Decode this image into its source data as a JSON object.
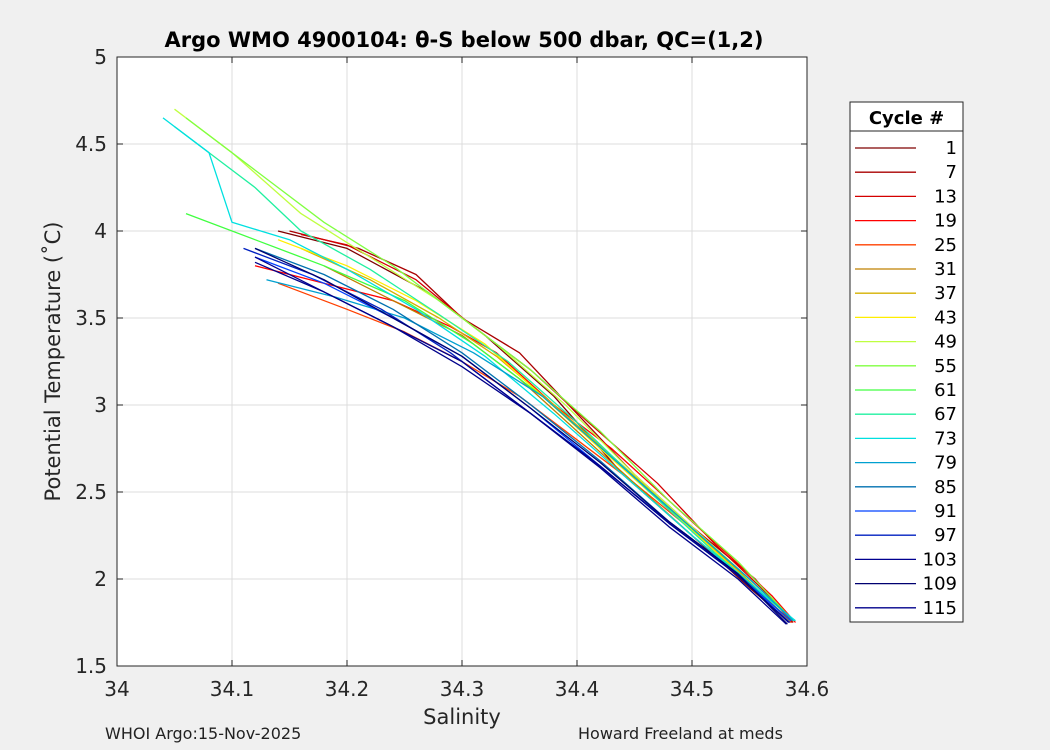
{
  "chart_data": {
    "type": "line",
    "title": "Argo WMO 4900104: θ-S below 500 dbar,  QC=(1,2)",
    "xlabel": "Salinity",
    "ylabel": "Potential Temperature (˚C)",
    "xlim": [
      34,
      34.6
    ],
    "ylim": [
      1.5,
      5
    ],
    "xticks": [
      34,
      34.1,
      34.2,
      34.3,
      34.4,
      34.5,
      34.6
    ],
    "xtick_labels": [
      "34",
      "34.1",
      "34.2",
      "34.3",
      "34.4",
      "34.5",
      "34.6"
    ],
    "yticks": [
      1.5,
      2,
      2.5,
      3,
      3.5,
      4,
      4.5,
      5
    ],
    "ytick_labels": [
      "1.5",
      "2",
      "2.5",
      "3",
      "3.5",
      "4",
      "4.5",
      "5"
    ],
    "grid": true,
    "legend": {
      "title": "Cycle #",
      "position": "right-outside",
      "entries": [
        {
          "label": "1",
          "color": "#7f0000"
        },
        {
          "label": "7",
          "color": "#aa0000"
        },
        {
          "label": "13",
          "color": "#d40000"
        },
        {
          "label": "19",
          "color": "#ff0000"
        },
        {
          "label": "25",
          "color": "#ff4000"
        },
        {
          "label": "31",
          "color": "#bf8000"
        },
        {
          "label": "37",
          "color": "#d4b000"
        },
        {
          "label": "43",
          "color": "#ffee00"
        },
        {
          "label": "49",
          "color": "#bfff40"
        },
        {
          "label": "55",
          "color": "#80ff40"
        },
        {
          "label": "61",
          "color": "#40ff40"
        },
        {
          "label": "67",
          "color": "#20f0a0"
        },
        {
          "label": "73",
          "color": "#00e0e0"
        },
        {
          "label": "79",
          "color": "#00a0d0"
        },
        {
          "label": "85",
          "color": "#0070b0"
        },
        {
          "label": "91",
          "color": "#0040ff"
        },
        {
          "label": "97",
          "color": "#0020c0"
        },
        {
          "label": "103",
          "color": "#000090"
        },
        {
          "label": "109",
          "color": "#000070"
        },
        {
          "label": "115",
          "color": "#00008b"
        }
      ]
    },
    "series": [
      {
        "name": "1",
        "color": "#7f0000",
        "x": [
          34.14,
          34.2,
          34.27,
          34.32,
          34.38,
          34.44,
          34.5,
          34.55,
          34.585
        ],
        "y": [
          4.0,
          3.9,
          3.65,
          3.4,
          3.05,
          2.6,
          2.25,
          1.95,
          1.75
        ]
      },
      {
        "name": "7",
        "color": "#aa0000",
        "x": [
          34.15,
          34.21,
          34.26,
          34.3,
          34.35,
          34.4,
          34.45,
          34.5,
          34.555,
          34.587
        ],
        "y": [
          4.0,
          3.9,
          3.75,
          3.5,
          3.3,
          2.95,
          2.6,
          2.3,
          2.0,
          1.75
        ]
      },
      {
        "name": "13",
        "color": "#d40000",
        "x": [
          34.16,
          34.2,
          34.26,
          34.31,
          34.36,
          34.41,
          34.47,
          34.52,
          34.56,
          34.588
        ],
        "y": [
          3.98,
          3.92,
          3.72,
          3.45,
          3.2,
          2.9,
          2.55,
          2.2,
          1.95,
          1.75
        ]
      },
      {
        "name": "19",
        "color": "#ff0000",
        "x": [
          34.12,
          34.18,
          34.24,
          34.29,
          34.33,
          34.38,
          34.43,
          34.48,
          34.53,
          34.57,
          34.59
        ],
        "y": [
          3.8,
          3.7,
          3.6,
          3.45,
          3.3,
          3.0,
          2.75,
          2.45,
          2.15,
          1.9,
          1.75
        ]
      },
      {
        "name": "25",
        "color": "#ff4000",
        "x": [
          34.14,
          34.2,
          34.25,
          34.3,
          34.35,
          34.4,
          34.45,
          34.5,
          34.54,
          34.586
        ],
        "y": [
          3.7,
          3.55,
          3.42,
          3.25,
          3.05,
          2.8,
          2.55,
          2.28,
          2.05,
          1.75
        ]
      },
      {
        "name": "31",
        "color": "#bf8000",
        "x": [
          34.18,
          34.24,
          34.3,
          34.35,
          34.4,
          34.45,
          34.5,
          34.55,
          34.585
        ],
        "y": [
          3.8,
          3.6,
          3.4,
          3.15,
          2.85,
          2.55,
          2.25,
          1.98,
          1.76
        ]
      },
      {
        "name": "37",
        "color": "#d4b000",
        "x": [
          34.16,
          34.22,
          34.28,
          34.33,
          34.38,
          34.44,
          34.49,
          34.54,
          34.585
        ],
        "y": [
          3.9,
          3.72,
          3.5,
          3.28,
          3.0,
          2.65,
          2.35,
          2.05,
          1.76
        ]
      },
      {
        "name": "43",
        "color": "#ffee00",
        "x": [
          34.14,
          34.2,
          34.26,
          34.32,
          34.37,
          34.42,
          34.48,
          34.53,
          34.586
        ],
        "y": [
          3.95,
          3.8,
          3.6,
          3.35,
          3.05,
          2.75,
          2.4,
          2.1,
          1.76
        ]
      },
      {
        "name": "49",
        "color": "#bfff40",
        "x": [
          34.05,
          34.1,
          34.16,
          34.22,
          34.28,
          34.33,
          34.39,
          34.45,
          34.5,
          34.55,
          34.588
        ],
        "y": [
          4.7,
          4.45,
          4.1,
          3.85,
          3.6,
          3.35,
          3.0,
          2.6,
          2.3,
          2.0,
          1.76
        ]
      },
      {
        "name": "55",
        "color": "#80ff40",
        "x": [
          34.06,
          34.12,
          34.18,
          34.24,
          34.3,
          34.36,
          34.42,
          34.48,
          34.54,
          34.588
        ],
        "y": [
          4.65,
          4.35,
          4.05,
          3.8,
          3.5,
          3.2,
          2.85,
          2.45,
          2.1,
          1.76
        ]
      },
      {
        "name": "61",
        "color": "#40ff40",
        "x": [
          34.06,
          34.12,
          34.18,
          34.25,
          34.31,
          34.37,
          34.43,
          34.49,
          34.55,
          34.589
        ],
        "y": [
          4.1,
          3.95,
          3.8,
          3.6,
          3.35,
          3.05,
          2.7,
          2.35,
          2.0,
          1.76
        ]
      },
      {
        "name": "67",
        "color": "#20f0a0",
        "x": [
          34.05,
          34.09,
          34.12,
          34.16,
          34.22,
          34.28,
          34.34,
          34.4,
          34.46,
          34.52,
          34.589
        ],
        "y": [
          4.6,
          4.4,
          4.25,
          4.0,
          3.78,
          3.52,
          3.25,
          2.9,
          2.52,
          2.15,
          1.76
        ]
      },
      {
        "name": "73",
        "color": "#00e0e0",
        "x": [
          34.04,
          34.08,
          34.1,
          34.15,
          34.2,
          34.26,
          34.32,
          34.38,
          34.44,
          34.5,
          34.56,
          34.59
        ],
        "y": [
          4.65,
          4.45,
          4.05,
          3.95,
          3.78,
          3.55,
          3.28,
          2.95,
          2.6,
          2.25,
          1.92,
          1.76
        ]
      },
      {
        "name": "79",
        "color": "#00a0d0",
        "x": [
          34.13,
          34.19,
          34.25,
          34.31,
          34.37,
          34.43,
          34.49,
          34.55,
          34.588
        ],
        "y": [
          3.72,
          3.62,
          3.5,
          3.3,
          3.05,
          2.7,
          2.35,
          2.0,
          1.76
        ]
      },
      {
        "name": "85",
        "color": "#0070b0",
        "x": [
          34.12,
          34.18,
          34.24,
          34.3,
          34.36,
          34.42,
          34.48,
          34.54,
          34.586
        ],
        "y": [
          3.9,
          3.75,
          3.55,
          3.3,
          3.0,
          2.68,
          2.33,
          2.03,
          1.76
        ]
      },
      {
        "name": "91",
        "color": "#0040ff",
        "x": [
          34.12,
          34.18,
          34.24,
          34.3,
          34.36,
          34.42,
          34.48,
          34.54,
          34.586
        ],
        "y": [
          3.85,
          3.7,
          3.5,
          3.28,
          2.98,
          2.65,
          2.32,
          2.02,
          1.76
        ]
      },
      {
        "name": "97",
        "color": "#0020c0",
        "x": [
          34.11,
          34.17,
          34.23,
          34.29,
          34.35,
          34.41,
          34.47,
          34.53,
          34.585
        ],
        "y": [
          3.9,
          3.75,
          3.55,
          3.3,
          3.0,
          2.7,
          2.38,
          2.08,
          1.75
        ]
      },
      {
        "name": "103",
        "color": "#000090",
        "x": [
          34.12,
          34.18,
          34.24,
          34.3,
          34.36,
          34.42,
          34.48,
          34.54,
          34.584
        ],
        "y": [
          3.85,
          3.65,
          3.45,
          3.25,
          2.95,
          2.65,
          2.32,
          2.02,
          1.75
        ]
      },
      {
        "name": "109",
        "color": "#000070",
        "x": [
          34.12,
          34.18,
          34.24,
          34.3,
          34.36,
          34.42,
          34.48,
          34.54,
          34.583
        ],
        "y": [
          3.9,
          3.72,
          3.5,
          3.28,
          2.98,
          2.67,
          2.33,
          2.03,
          1.74
        ]
      },
      {
        "name": "115",
        "color": "#00008b",
        "x": [
          34.12,
          34.18,
          34.24,
          34.3,
          34.36,
          34.42,
          34.48,
          34.54,
          34.582
        ],
        "y": [
          3.82,
          3.65,
          3.45,
          3.22,
          2.95,
          2.64,
          2.3,
          2.0,
          1.74
        ]
      }
    ]
  },
  "footer": {
    "left": "WHOI Argo:15-Nov-2025",
    "right": "Howard Freeland at meds"
  }
}
